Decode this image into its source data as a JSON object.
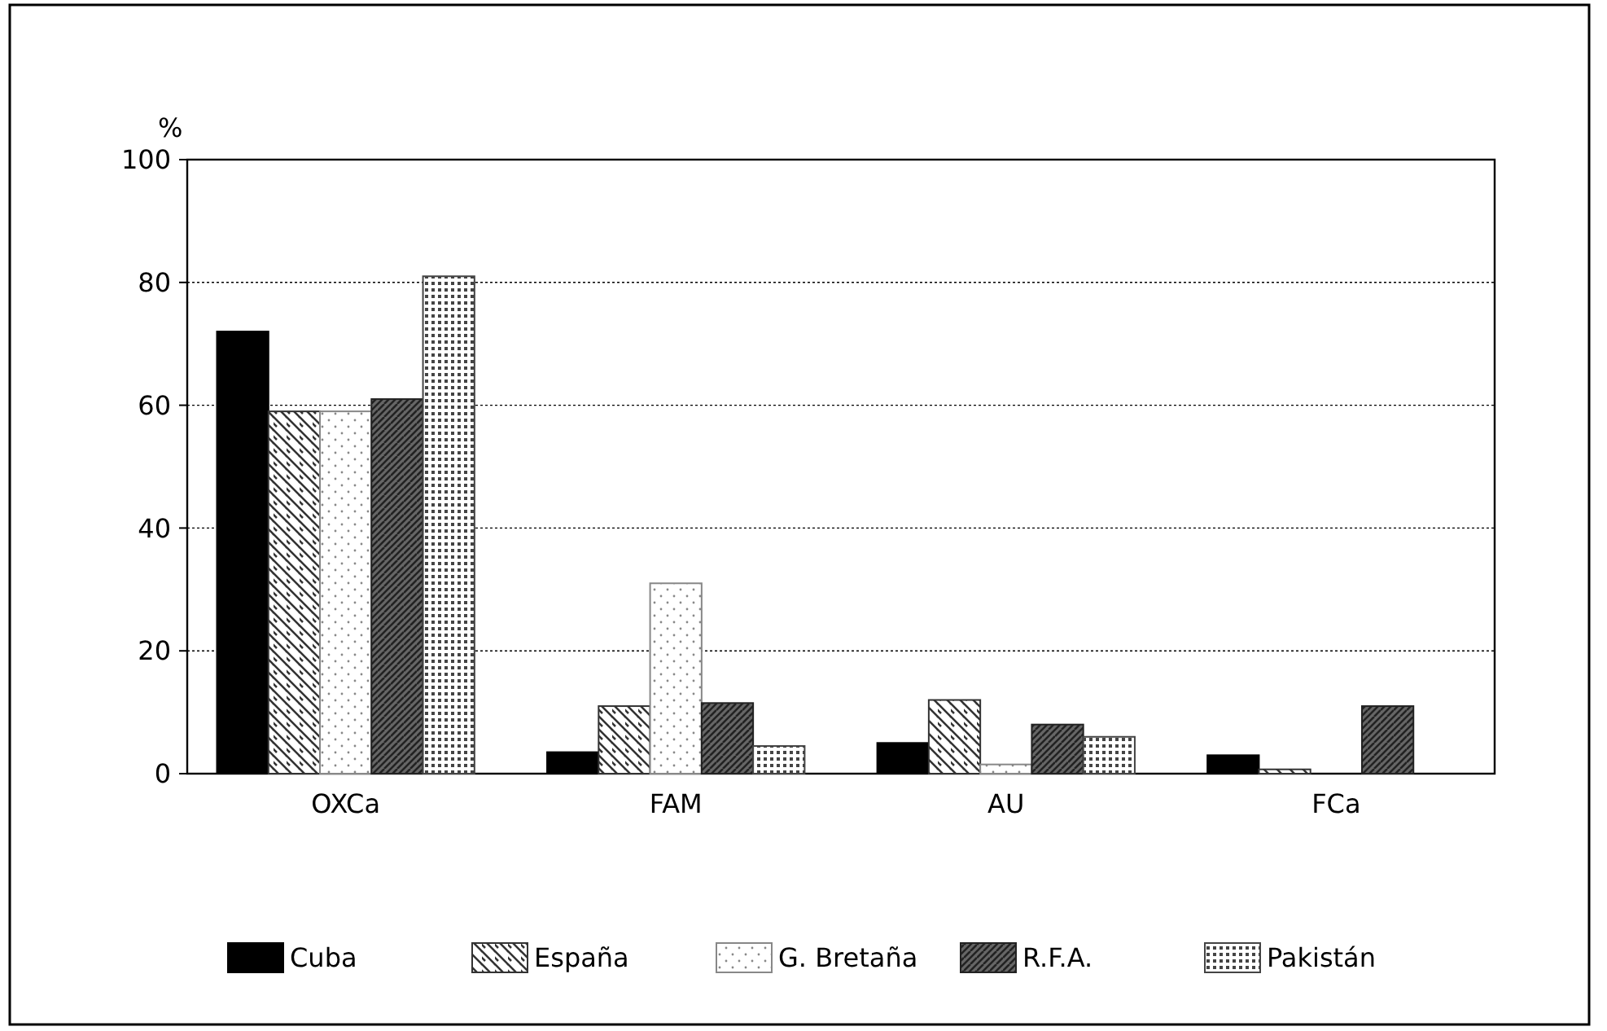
{
  "chart_data": {
    "type": "bar",
    "ylabel": "%",
    "categories": [
      "OXCa",
      "FAM",
      "AU",
      "FCa"
    ],
    "series": [
      {
        "name": "Cuba",
        "color": "#000000",
        "values": [
          72,
          3.5,
          5,
          3
        ]
      },
      {
        "name": "España",
        "color": "#333333",
        "values": [
          59,
          11,
          12,
          0.7
        ]
      },
      {
        "name": "G. Bretaña",
        "color": "#888888",
        "values": [
          59,
          31,
          1.5,
          null
        ]
      },
      {
        "name": "R.F.A.",
        "color": "#222222",
        "values": [
          61,
          11.5,
          8,
          11
        ]
      },
      {
        "name": "Pakistán",
        "color": "#444444",
        "values": [
          81,
          4.5,
          6,
          null
        ]
      }
    ],
    "ylim": [
      0,
      100
    ],
    "yticks": [
      0,
      20,
      40,
      60,
      80,
      100
    ],
    "grid": "y",
    "legend": "bottom"
  }
}
